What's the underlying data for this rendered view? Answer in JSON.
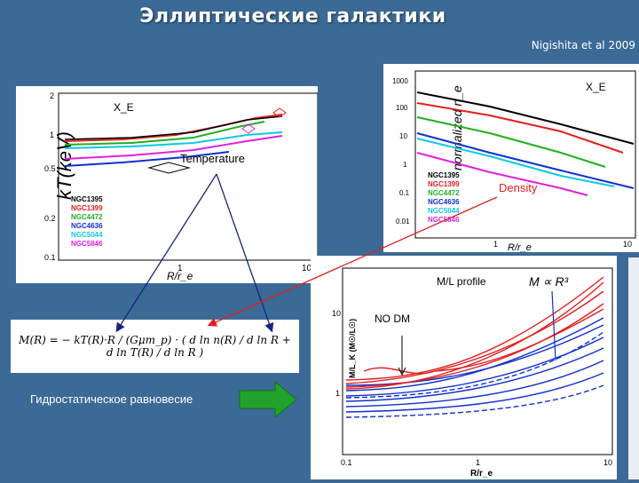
{
  "title": "Эллиптические галактики",
  "citation": "Nigishita et al 2009",
  "temperature_panel": {
    "label": "Temperature",
    "tag": "X_E",
    "ylabel": "kT(keV)",
    "xlabel": "R/r_e",
    "yticks": [
      "2",
      "1",
      "0.5",
      "0.2",
      "0.1"
    ],
    "xticks": [
      "1",
      "10"
    ],
    "legend": [
      {
        "name": "NGC1395",
        "color": "#000000"
      },
      {
        "name": "NGC1399",
        "color": "#e02020"
      },
      {
        "name": "NGC4472",
        "color": "#20b020"
      },
      {
        "name": "NGC4636",
        "color": "#1030d0"
      },
      {
        "name": "NGC5044",
        "color": "#10c8e0"
      },
      {
        "name": "NGC5846",
        "color": "#e020e0"
      }
    ]
  },
  "density_panel": {
    "label": "Density",
    "tag": "X_E",
    "ylabel": "normalized n_e",
    "xlabel": "R/r_e",
    "yticks": [
      "1000",
      "100",
      "10",
      "1",
      "0.1",
      "0.01"
    ],
    "xticks": [
      "1",
      "10"
    ],
    "legend": [
      "NGC1395",
      "NGC1399",
      "NGC4472",
      "NGC4636",
      "NGC5044",
      "NGC5846"
    ]
  },
  "ml_panel": {
    "label": "M/L profile",
    "relation": "M ∝ R³",
    "nodm_label": "NO DM",
    "ylabel": "M/L_K (M☉/L☉)",
    "xlabel": "R/r_e",
    "yticks": [
      "10",
      "1"
    ],
    "xticks": [
      "0.1",
      "1",
      "10"
    ]
  },
  "formula": "M(R) = − kT(R)·R / (Gμm_p) · ( d ln n(R) / d ln R + d ln T(R) / d ln R )",
  "hydrostatic": "Гидростатическое равновесие"
}
